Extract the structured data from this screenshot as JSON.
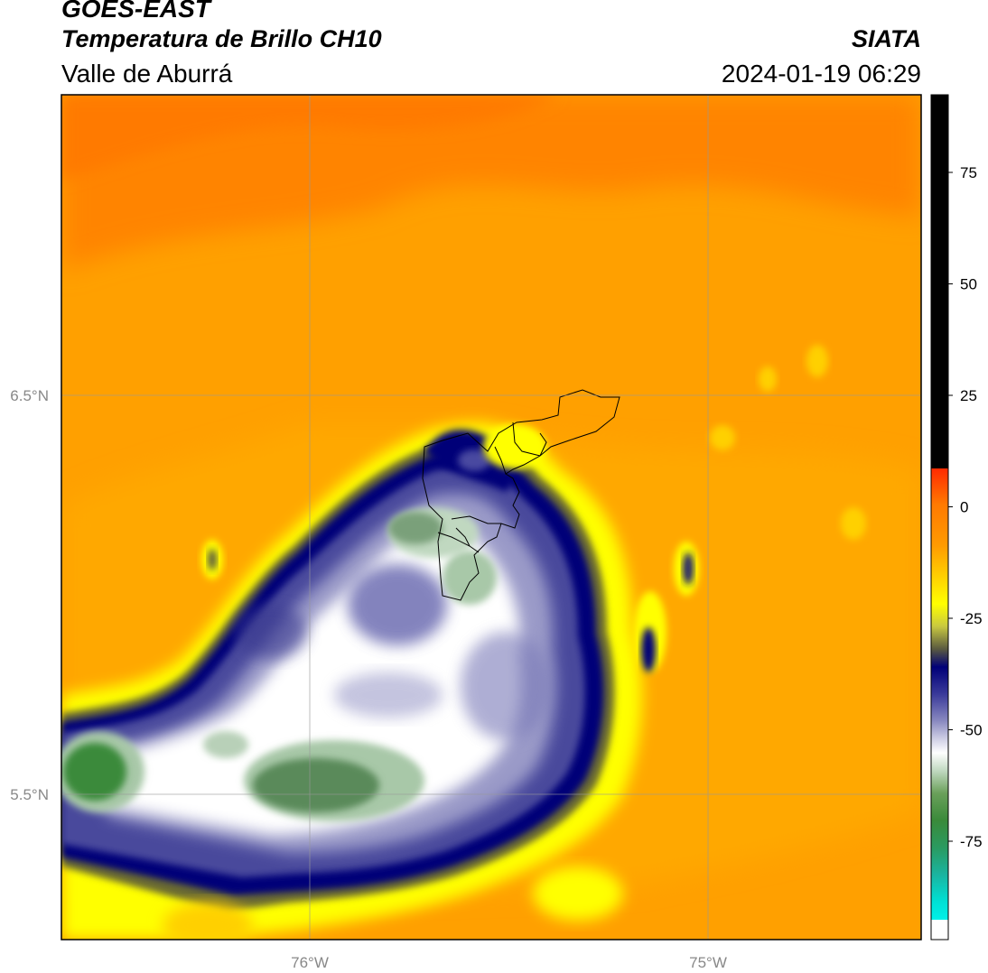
{
  "header": {
    "satellite": "GOES-EAST",
    "product": "Temperatura de Brillo CH10",
    "region": "Valle de Aburrá",
    "organization": "SIATA",
    "timestamp": "2024-01-19 06:29"
  },
  "map": {
    "latitude_labels": [
      "6.5°N",
      "5.5°N"
    ],
    "longitude_labels": [
      "76°W",
      "75°W"
    ],
    "gridlines": true,
    "variable": "brightness temperature (°C)"
  },
  "colorbar": {
    "ticks": [
      "75",
      "50",
      "25",
      "0",
      "-25",
      "-50",
      "-75"
    ],
    "colors": {
      "top": "#000000",
      "red": "#ff2a00",
      "orange": "#ff8a00",
      "yellow": "#ffff00",
      "navy": "#0a0a78",
      "blue": "#5a5aa8",
      "white": "#ffffff",
      "green": "#3a8a3a",
      "cyan": "#00e6d8"
    }
  }
}
